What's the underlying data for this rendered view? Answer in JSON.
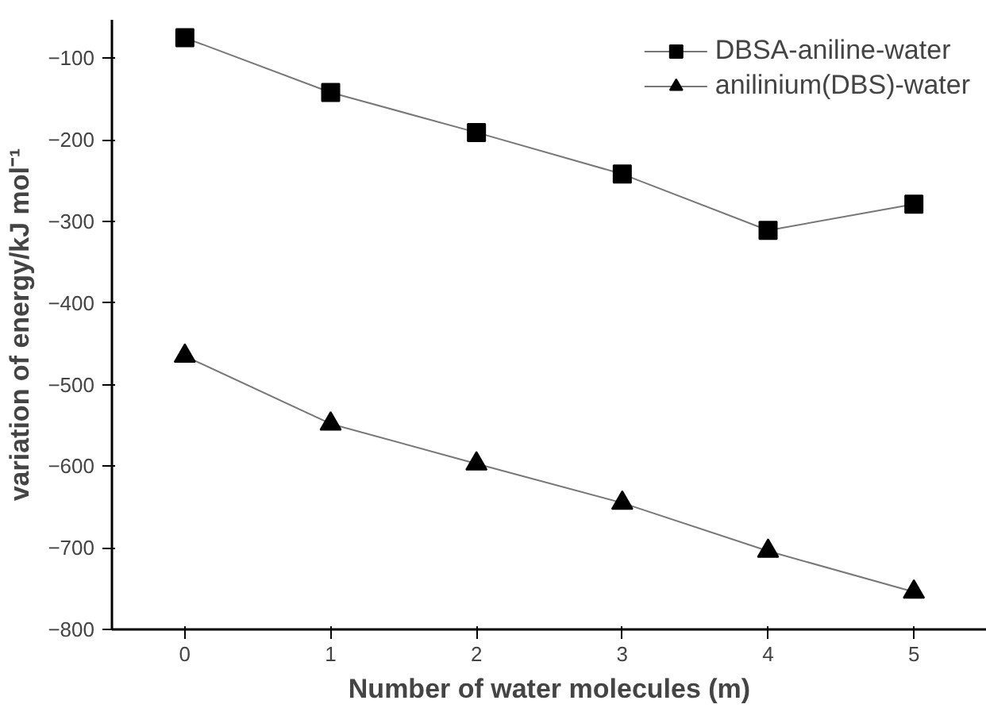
{
  "chart_data": {
    "type": "line",
    "xlabel": "Number of water molecules (m)",
    "ylabel": "variation of energy/kJ mol⁻¹",
    "x": [
      0,
      1,
      2,
      3,
      4,
      5
    ],
    "series": [
      {
        "name": "DBSA-aniline-water",
        "color": "#000000",
        "marker": "square",
        "values": [
          -75,
          -142,
          -191,
          -242,
          -311,
          -279
        ]
      },
      {
        "name": "anilinium(DBS)-water",
        "color": "#000000",
        "marker": "triangle",
        "values": [
          -465,
          -548,
          -597,
          -645,
          -704,
          -754
        ]
      }
    ],
    "xlim": [
      -0.5,
      5.5
    ],
    "xticks": [
      0,
      1,
      2,
      3,
      4,
      5
    ],
    "ylim": [
      -800,
      -53
    ],
    "yticks": [
      -100,
      -200,
      -300,
      -400,
      -500,
      -600,
      -700,
      -800
    ],
    "grid": false,
    "legend": "top right",
    "line_style": "solid"
  }
}
